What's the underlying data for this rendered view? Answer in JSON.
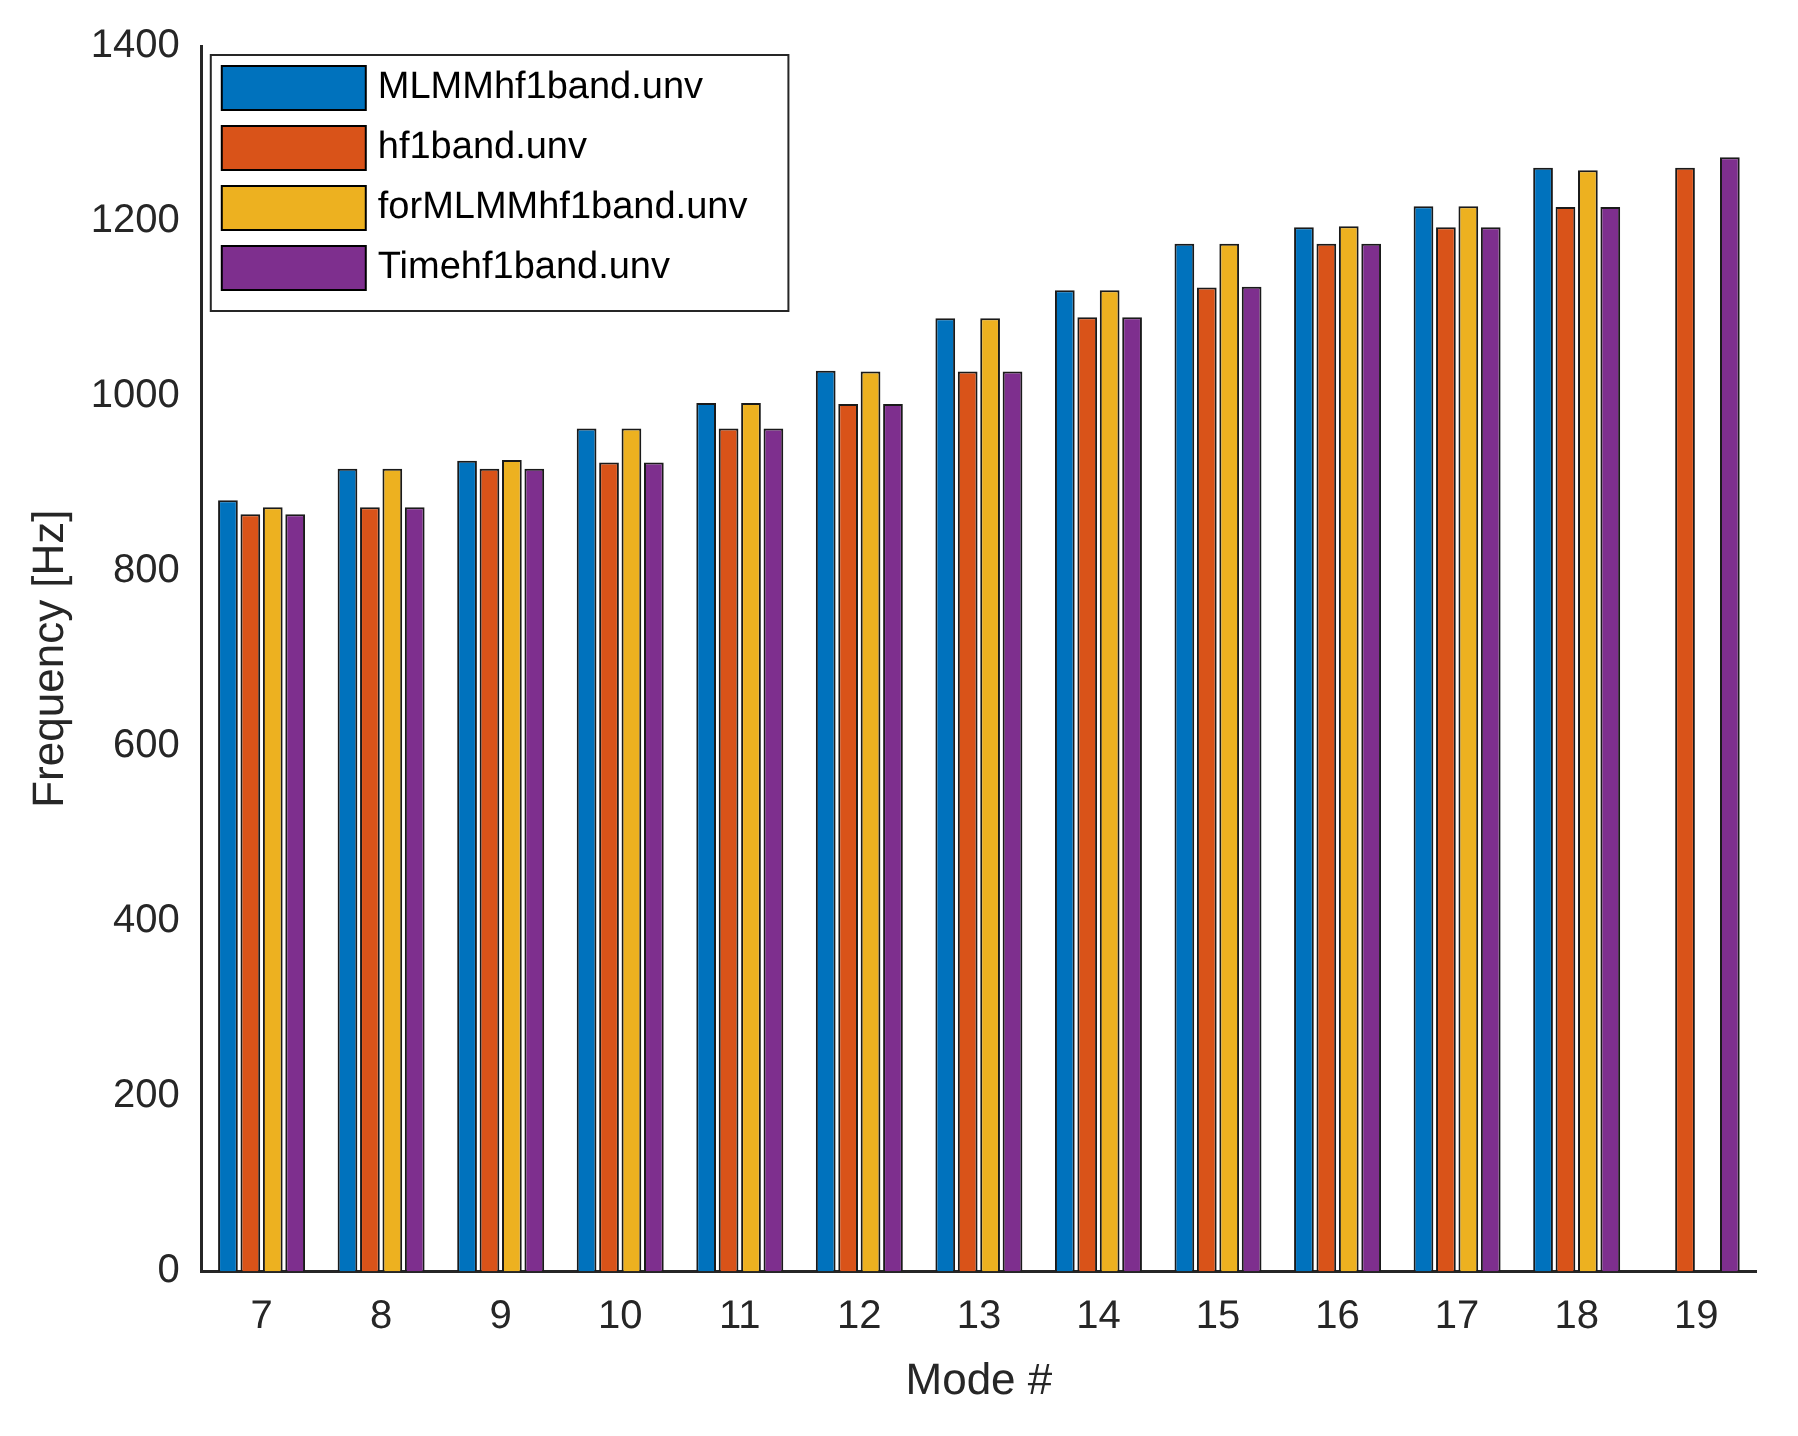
{
  "chart_data": {
    "type": "bar",
    "xlabel": "Mode #",
    "ylabel": "Frequency [Hz]",
    "categories": [
      "7",
      "8",
      "9",
      "10",
      "11",
      "12",
      "13",
      "14",
      "15",
      "16",
      "17",
      "18",
      "19"
    ],
    "series": [
      {
        "name": "MLMMhf1band.unv",
        "color": "#0072bd",
        "values": [
          881,
          917,
          926,
          963,
          992,
          1029,
          1089,
          1121,
          1174,
          1193,
          1217,
          1261,
          null
        ]
      },
      {
        "name": "hf1band.unv",
        "color": "#d95319",
        "values": [
          865,
          873,
          917,
          924,
          963,
          991,
          1028,
          1090,
          1124,
          1174,
          1193,
          1216,
          1261
        ]
      },
      {
        "name": "forMLMMhf1band.unv",
        "color": "#edb120",
        "values": [
          873,
          917,
          927,
          963,
          992,
          1028,
          1089,
          1121,
          1174,
          1194,
          1217,
          1258,
          null
        ]
      },
      {
        "name": "Timehf1band.unv",
        "color": "#7e2f8e",
        "values": [
          865,
          873,
          917,
          924,
          963,
          991,
          1028,
          1090,
          1125,
          1174,
          1193,
          1216,
          1273
        ]
      }
    ],
    "ylim": [
      0,
      1400
    ],
    "yticks": [
      0,
      200,
      400,
      600,
      800,
      1000,
      1200,
      1400
    ],
    "grid": false,
    "legend": "top left"
  }
}
